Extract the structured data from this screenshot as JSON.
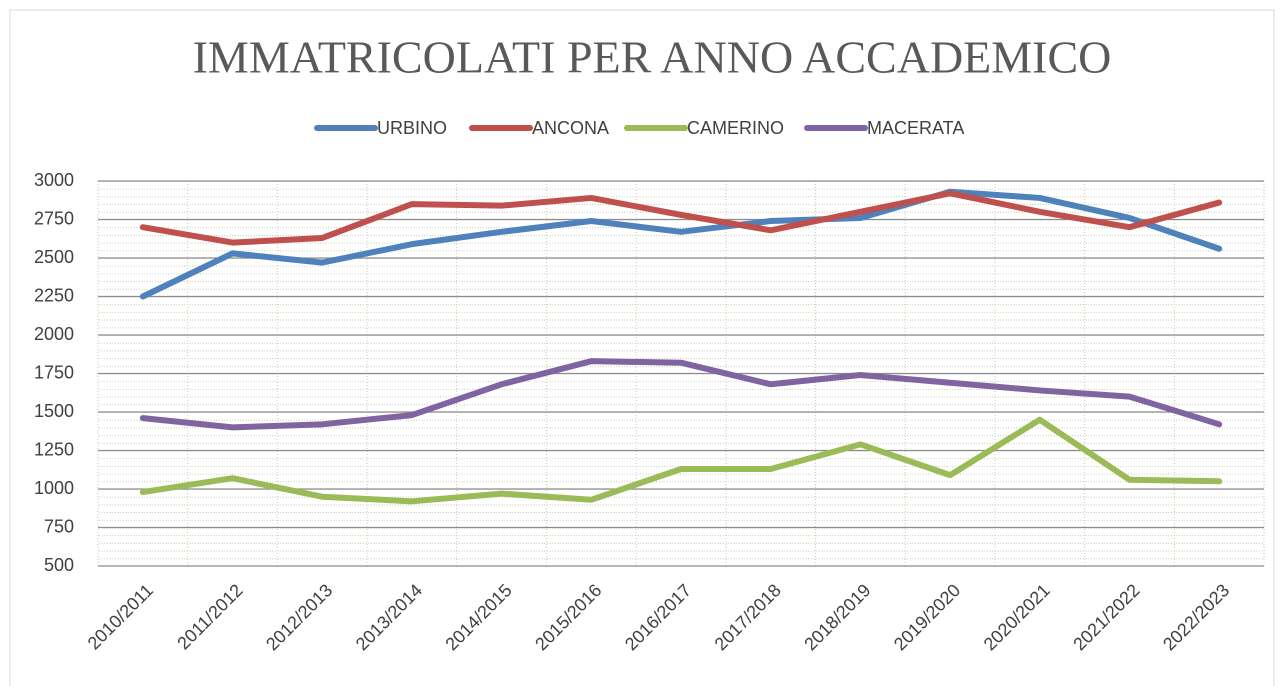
{
  "chart_data": {
    "type": "line",
    "title": "IMMATRICOLATI PER ANNO ACCADEMICO",
    "categories": [
      "2010/2011",
      "2011/2012",
      "2012/2013",
      "2013/2014",
      "2014/2015",
      "2015/2016",
      "2016/2017",
      "2017/2018",
      "2018/2019",
      "2019/2020",
      "2020/2021",
      "2021/2022",
      "2022/2023"
    ],
    "series": [
      {
        "name": "URBINO",
        "color": "#4f81bd",
        "values": [
          2250,
          2530,
          2470,
          2590,
          2670,
          2740,
          2670,
          2740,
          2760,
          2930,
          2890,
          2760,
          2560
        ]
      },
      {
        "name": "ANCONA",
        "color": "#c0504d",
        "values": [
          2700,
          2600,
          2630,
          2850,
          2840,
          2890,
          2780,
          2680,
          2800,
          2920,
          2800,
          2700,
          2860
        ]
      },
      {
        "name": "CAMERINO",
        "color": "#9bbb59",
        "values": [
          980,
          1070,
          950,
          920,
          970,
          930,
          1130,
          1130,
          1290,
          1090,
          1450,
          1060,
          1050
        ]
      },
      {
        "name": "MACERATA",
        "color": "#8064a2",
        "values": [
          1460,
          1400,
          1420,
          1480,
          1680,
          1830,
          1820,
          1680,
          1740,
          1690,
          1640,
          1600,
          1420
        ]
      }
    ],
    "ylim": [
      500,
      3000
    ],
    "yticks": [
      500,
      750,
      1000,
      1250,
      1500,
      1750,
      2000,
      2250,
      2500,
      2750,
      3000
    ],
    "grid": true,
    "legend": "top"
  }
}
